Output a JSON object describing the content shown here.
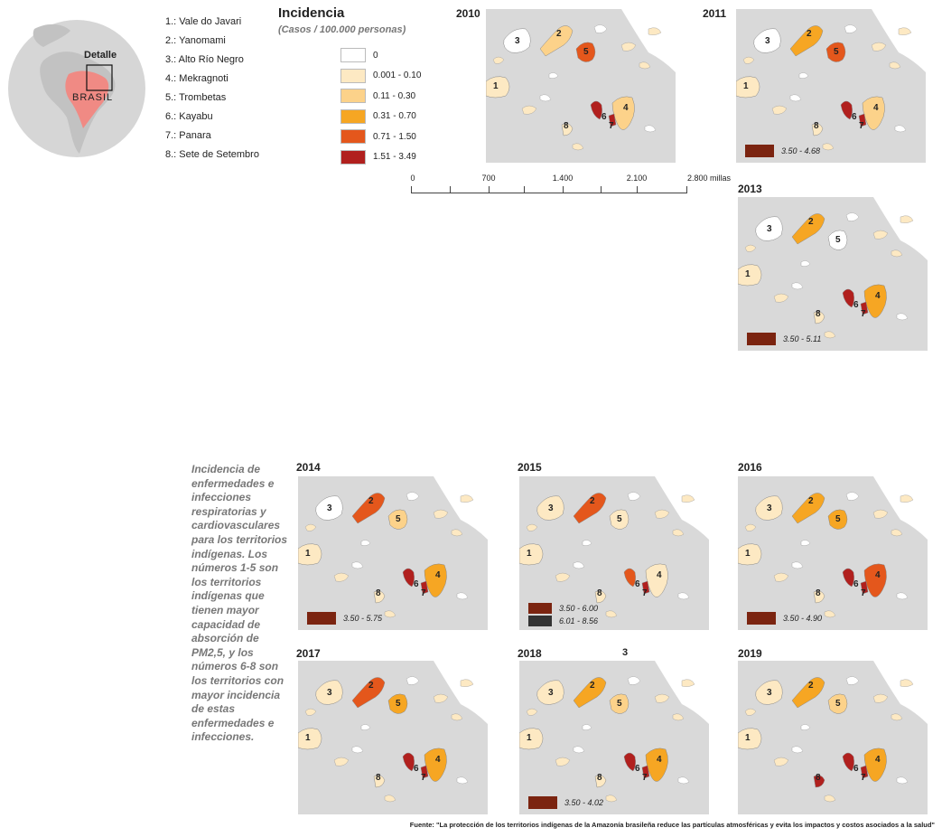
{
  "locator": {
    "detail_label": "Detalle",
    "country_label": "BRASIL"
  },
  "territories": [
    {
      "num": "1",
      "label": "1.: Vale do Javari"
    },
    {
      "num": "2",
      "label": "2.: Yanomami"
    },
    {
      "num": "3",
      "label": "3.: Alto Río Negro"
    },
    {
      "num": "4",
      "label": "4.: Mekragnoti"
    },
    {
      "num": "5",
      "label": "5.: Trombetas"
    },
    {
      "num": "6",
      "label": "6.: Kayabu"
    },
    {
      "num": "7",
      "label": "7.: Panara"
    },
    {
      "num": "8",
      "label": "8.: Sete de Setembro"
    }
  ],
  "legend": {
    "title": "Incidencia",
    "subtitle": "(Casos / 100.000 personas)",
    "classes": [
      {
        "label": "0",
        "color": "#ffffff"
      },
      {
        "label": "0.001 - 0.10",
        "color": "#fde9c3"
      },
      {
        "label": "0.11 - 0.30",
        "color": "#fcd28a"
      },
      {
        "label": "0.31 - 0.70",
        "color": "#f6a623"
      },
      {
        "label": "0.71 - 1.50",
        "color": "#e4571c"
      },
      {
        "label": "1.51 - 3.49",
        "color": "#b1201e"
      }
    ]
  },
  "scale_bar": {
    "labels": [
      "0",
      "700",
      "1.400",
      "2.100",
      "2.800 millas"
    ]
  },
  "years": [
    {
      "year": "2010",
      "classes": {
        "1": 1,
        "2": 2,
        "3": 0,
        "4": 2,
        "5": 4,
        "6": 5,
        "7": 5,
        "8": 1
      },
      "extra": []
    },
    {
      "year": "2011",
      "classes": {
        "1": 1,
        "2": 3,
        "3": 0,
        "4": 2,
        "5": 4,
        "6": 5,
        "7": 5,
        "8": 1
      },
      "extra": [
        {
          "label": "3.50 - 4.68",
          "color": "#7b2410"
        }
      ]
    },
    {
      "year": "2013",
      "classes": {
        "1": 1,
        "2": 3,
        "3": 0,
        "4": 3,
        "5": 0,
        "6": 5,
        "7": 5,
        "8": 1
      },
      "extra": [
        {
          "label": "3.50 - 5.11",
          "color": "#7b2410"
        }
      ]
    },
    {
      "year": "2014",
      "classes": {
        "1": 1,
        "2": 4,
        "3": 0,
        "4": 3,
        "5": 2,
        "6": 5,
        "7": 5,
        "8": 1
      },
      "extra": [
        {
          "label": "3.50 - 5.75",
          "color": "#7b2410"
        }
      ]
    },
    {
      "year": "2015",
      "classes": {
        "1": 1,
        "2": 4,
        "3": 1,
        "4": 1,
        "5": 1,
        "6": 4,
        "7": 5,
        "8": 1
      },
      "extra": [
        {
          "label": "3.50 - 6.00",
          "color": "#7b2410"
        },
        {
          "label": "6.01 - 8.56",
          "color": "#333333"
        }
      ]
    },
    {
      "year": "2016",
      "classes": {
        "1": 1,
        "2": 3,
        "3": 1,
        "4": 4,
        "5": 3,
        "6": 5,
        "7": 5,
        "8": 1
      },
      "extra": [
        {
          "label": "3.50 - 4.90",
          "color": "#7b2410"
        }
      ]
    },
    {
      "year": "2017",
      "classes": {
        "1": 1,
        "2": 4,
        "3": 1,
        "4": 3,
        "5": 3,
        "6": 5,
        "7": 5,
        "8": 1
      },
      "extra": []
    },
    {
      "year": "2018",
      "classes": {
        "1": 1,
        "2": 3,
        "3": 1,
        "4": 3,
        "5": 2,
        "6": 5,
        "7": 5,
        "8": 1
      },
      "extra": [
        {
          "label": "3.50 - 4.02",
          "color": "#7b2410"
        }
      ]
    },
    {
      "year": "2019",
      "classes": {
        "1": 1,
        "2": 3,
        "3": 1,
        "4": 3,
        "5": 2,
        "6": 5,
        "7": 5,
        "8": 5
      },
      "extra": []
    }
  ],
  "description": "Incidencia de enfermedades e infecciones respiratorias y cardiovasculares para los territorios indígenas. Los números 1-5 son los  territorios indígenas que tienen mayor capacidad de absorción de PM2,5, y los números 6-8 son los territorios con mayor incidencia de estas enfermedades e infecciones.",
  "stray_label": "3",
  "source": "Fuente:  \"La protección de los territorios indígenas de la Amazonía brasileña reduce las partículas atmosféricas y evita los impactos y costos asociados a la salud\""
}
